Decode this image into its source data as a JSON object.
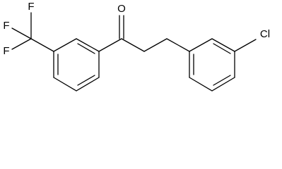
{
  "molecule": {
    "atoms": [
      {
        "label": "F"
      },
      {
        "label": "F"
      },
      {
        "label": "F"
      },
      {
        "label": "O"
      },
      {
        "label": "Cl"
      }
    ]
  }
}
